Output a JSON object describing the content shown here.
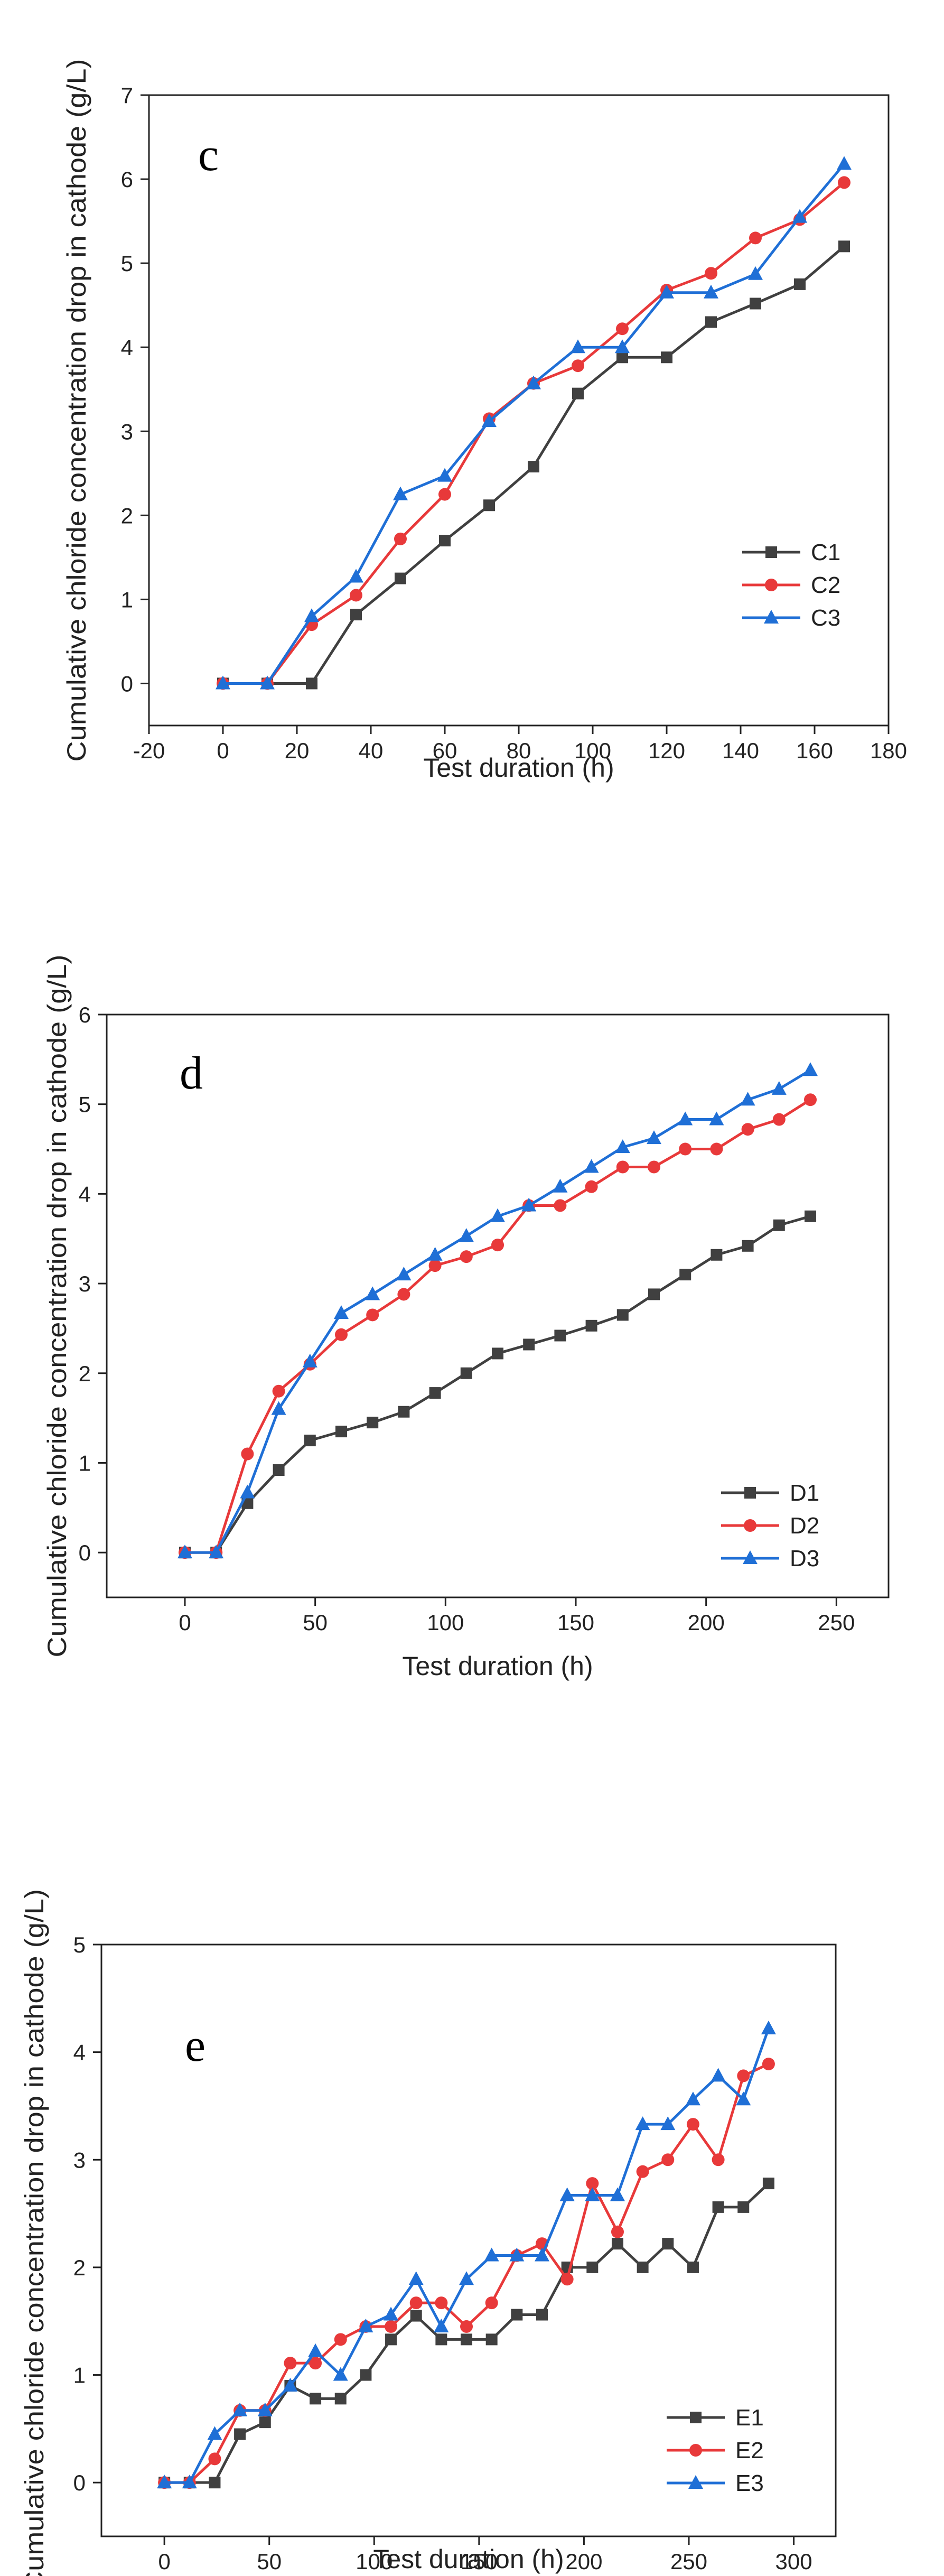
{
  "figure": {
    "panels_label": "cumulative chloride concentration drop charts"
  },
  "chart_data": [
    {
      "type": "line",
      "panel_label": "c",
      "xlabel": "Test duration (h)",
      "ylabel": "Cumulative chloride concentration drop in cathode (g/L)",
      "xlim": [
        -20,
        180
      ],
      "ylim": [
        -0.5,
        7
      ],
      "xticks": [
        "-20",
        "0",
        "20",
        "40",
        "60",
        "80",
        "100",
        "120",
        "140",
        "160",
        "180"
      ],
      "yticks": [
        "0",
        "1",
        "2",
        "3",
        "4",
        "5",
        "6",
        "7"
      ],
      "legend_position": "bottom-right",
      "series": [
        {
          "name": "C1",
          "color": "#404040",
          "marker": "square",
          "x": [
            0,
            12,
            24,
            36,
            48,
            60,
            72,
            84,
            96,
            108,
            120,
            132,
            144,
            156,
            168
          ],
          "y": [
            0,
            0,
            0,
            0.82,
            1.25,
            1.7,
            2.12,
            2.58,
            3.45,
            3.88,
            3.88,
            4.3,
            4.52,
            4.75,
            5.2
          ]
        },
        {
          "name": "C2",
          "color": "#e8393a",
          "marker": "circle",
          "x": [
            0,
            12,
            24,
            36,
            48,
            60,
            72,
            84,
            96,
            108,
            120,
            132,
            144,
            156,
            168
          ],
          "y": [
            0,
            0,
            0.7,
            1.05,
            1.72,
            2.25,
            3.15,
            3.57,
            3.78,
            4.22,
            4.68,
            4.88,
            5.3,
            5.52,
            5.96
          ]
        },
        {
          "name": "C3",
          "color": "#1f6fd6",
          "marker": "triangle",
          "x": [
            0,
            12,
            24,
            36,
            48,
            60,
            72,
            84,
            96,
            108,
            120,
            132,
            144,
            156,
            168
          ],
          "y": [
            0,
            0,
            0.8,
            1.27,
            2.25,
            2.47,
            3.12,
            3.57,
            4.0,
            4.0,
            4.65,
            4.65,
            4.87,
            5.55,
            6.18
          ]
        }
      ]
    },
    {
      "type": "line",
      "panel_label": "d",
      "xlabel": "Test duration (h)",
      "ylabel": "Cumulative chloride concentration drop in cathode (g/L)",
      "xlim": [
        -30,
        270
      ],
      "ylim": [
        -0.5,
        6
      ],
      "xticks": [
        "0",
        "50",
        "100",
        "150",
        "200",
        "250"
      ],
      "yticks": [
        "0",
        "1",
        "2",
        "3",
        "4",
        "5",
        "6"
      ],
      "legend_position": "bottom-right",
      "series": [
        {
          "name": "D1",
          "color": "#404040",
          "marker": "square",
          "x": [
            0,
            12,
            24,
            36,
            48,
            60,
            72,
            84,
            96,
            108,
            120,
            132,
            144,
            156,
            168,
            180,
            192,
            204,
            216,
            228,
            240
          ],
          "y": [
            0,
            0,
            0.55,
            0.92,
            1.25,
            1.35,
            1.45,
            1.57,
            1.78,
            2.0,
            2.22,
            2.32,
            2.42,
            2.53,
            2.65,
            2.88,
            3.1,
            3.32,
            3.42,
            3.65,
            3.75
          ]
        },
        {
          "name": "D2",
          "color": "#e8393a",
          "marker": "circle",
          "x": [
            0,
            12,
            24,
            36,
            48,
            60,
            72,
            84,
            96,
            108,
            120,
            132,
            144,
            156,
            168,
            180,
            192,
            204,
            216,
            228,
            240
          ],
          "y": [
            0,
            0,
            1.1,
            1.8,
            2.1,
            2.43,
            2.65,
            2.88,
            3.2,
            3.3,
            3.43,
            3.87,
            3.87,
            4.08,
            4.3,
            4.3,
            4.5,
            4.5,
            4.72,
            4.83,
            5.05
          ]
        },
        {
          "name": "D3",
          "color": "#1f6fd6",
          "marker": "triangle",
          "x": [
            0,
            12,
            24,
            36,
            48,
            60,
            72,
            84,
            96,
            108,
            120,
            132,
            144,
            156,
            168,
            180,
            192,
            204,
            216,
            228,
            240
          ],
          "y": [
            0,
            0,
            0.67,
            1.6,
            2.13,
            2.67,
            2.88,
            3.1,
            3.32,
            3.53,
            3.75,
            3.87,
            4.08,
            4.3,
            4.52,
            4.62,
            4.83,
            4.83,
            5.05,
            5.17,
            5.38
          ]
        }
      ]
    },
    {
      "type": "line",
      "panel_label": "e",
      "xlabel": "Test duration (h)",
      "ylabel": "Cumulative chloride concentration drop in cathode (g/L)",
      "xlim": [
        -30,
        320
      ],
      "ylim": [
        -0.5,
        5
      ],
      "xticks": [
        "0",
        "50",
        "100",
        "150",
        "200",
        "250",
        "300"
      ],
      "yticks": [
        "0",
        "1",
        "2",
        "3",
        "4",
        "5"
      ],
      "legend_position": "bottom-right",
      "series": [
        {
          "name": "E1",
          "color": "#404040",
          "marker": "square",
          "x": [
            0,
            12,
            24,
            36,
            48,
            60,
            72,
            84,
            96,
            108,
            120,
            132,
            144,
            156,
            168,
            180,
            192,
            204,
            216,
            228,
            240,
            252,
            264,
            276,
            288
          ],
          "y": [
            0,
            0,
            0,
            0.45,
            0.56,
            0.9,
            0.78,
            0.78,
            1.0,
            1.33,
            1.55,
            1.33,
            1.33,
            1.33,
            1.56,
            1.56,
            2.0,
            2.0,
            2.22,
            2.0,
            2.22,
            2.0,
            2.56,
            2.56,
            2.78
          ]
        },
        {
          "name": "E2",
          "color": "#e8393a",
          "marker": "circle",
          "x": [
            0,
            12,
            24,
            36,
            48,
            60,
            72,
            84,
            96,
            108,
            120,
            132,
            144,
            156,
            168,
            180,
            192,
            204,
            216,
            228,
            240,
            252,
            264,
            276,
            288
          ],
          "y": [
            0,
            0,
            0.22,
            0.67,
            0.67,
            1.11,
            1.11,
            1.33,
            1.45,
            1.45,
            1.67,
            1.67,
            1.45,
            1.67,
            2.11,
            2.22,
            1.89,
            2.78,
            2.33,
            2.89,
            3.0,
            3.33,
            3.0,
            3.78,
            3.89
          ]
        },
        {
          "name": "E3",
          "color": "#1f6fd6",
          "marker": "triangle",
          "x": [
            0,
            12,
            24,
            36,
            48,
            60,
            72,
            84,
            96,
            108,
            120,
            132,
            144,
            156,
            168,
            180,
            192,
            204,
            216,
            228,
            240,
            252,
            264,
            276,
            288
          ],
          "y": [
            0,
            0,
            0.45,
            0.67,
            0.67,
            0.9,
            1.22,
            1.0,
            1.45,
            1.56,
            1.89,
            1.45,
            1.89,
            2.11,
            2.11,
            2.11,
            2.67,
            2.67,
            2.67,
            3.33,
            3.33,
            3.56,
            3.78,
            3.56,
            4.22
          ]
        }
      ]
    }
  ]
}
